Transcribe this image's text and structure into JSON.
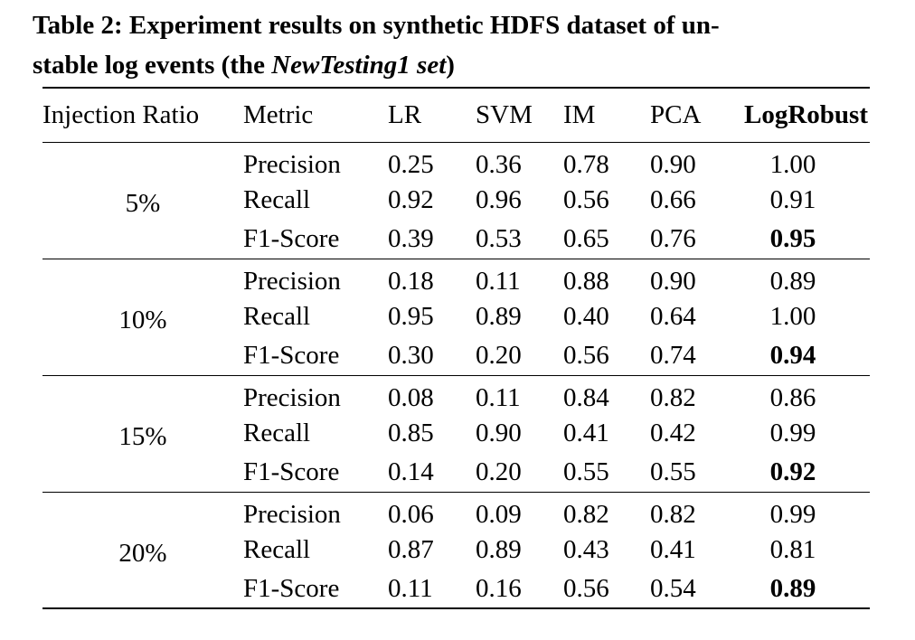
{
  "caption": {
    "prefix": "Table 2: Experiment results on synthetic HDFS dataset of un-",
    "line2_pre": "stable log events (the ",
    "italic": "NewTesting1 set",
    "line2_post": ")"
  },
  "table": {
    "headers": [
      "Injection Ratio",
      "Metric",
      "LR",
      "SVM",
      "IM",
      "PCA",
      "LogRobust"
    ],
    "groups": [
      {
        "ratio": "5%",
        "rows": [
          {
            "metric": "Precision",
            "values": [
              "0.25",
              "0.36",
              "0.78",
              "0.90",
              "1.00"
            ]
          },
          {
            "metric": "Recall",
            "values": [
              "0.92",
              "0.96",
              "0.56",
              "0.66",
              "0.91"
            ]
          },
          {
            "metric": "F1-Score",
            "values": [
              "0.39",
              "0.53",
              "0.65",
              "0.76",
              "0.95"
            ]
          }
        ]
      },
      {
        "ratio": "10%",
        "rows": [
          {
            "metric": "Precision",
            "values": [
              "0.18",
              "0.11",
              "0.88",
              "0.90",
              "0.89"
            ]
          },
          {
            "metric": "Recall",
            "values": [
              "0.95",
              "0.89",
              "0.40",
              "0.64",
              "1.00"
            ]
          },
          {
            "metric": "F1-Score",
            "values": [
              "0.30",
              "0.20",
              "0.56",
              "0.74",
              "0.94"
            ]
          }
        ]
      },
      {
        "ratio": "15%",
        "rows": [
          {
            "metric": "Precision",
            "values": [
              "0.08",
              "0.11",
              "0.84",
              "0.82",
              "0.86"
            ]
          },
          {
            "metric": "Recall",
            "values": [
              "0.85",
              "0.90",
              "0.41",
              "0.42",
              "0.99"
            ]
          },
          {
            "metric": "F1-Score",
            "values": [
              "0.14",
              "0.20",
              "0.55",
              "0.55",
              "0.92"
            ]
          }
        ]
      },
      {
        "ratio": "20%",
        "rows": [
          {
            "metric": "Precision",
            "values": [
              "0.06",
              "0.09",
              "0.82",
              "0.82",
              "0.99"
            ]
          },
          {
            "metric": "Recall",
            "values": [
              "0.87",
              "0.89",
              "0.43",
              "0.41",
              "0.81"
            ]
          },
          {
            "metric": "F1-Score",
            "values": [
              "0.11",
              "0.16",
              "0.56",
              "0.54",
              "0.89"
            ]
          }
        ]
      }
    ]
  }
}
